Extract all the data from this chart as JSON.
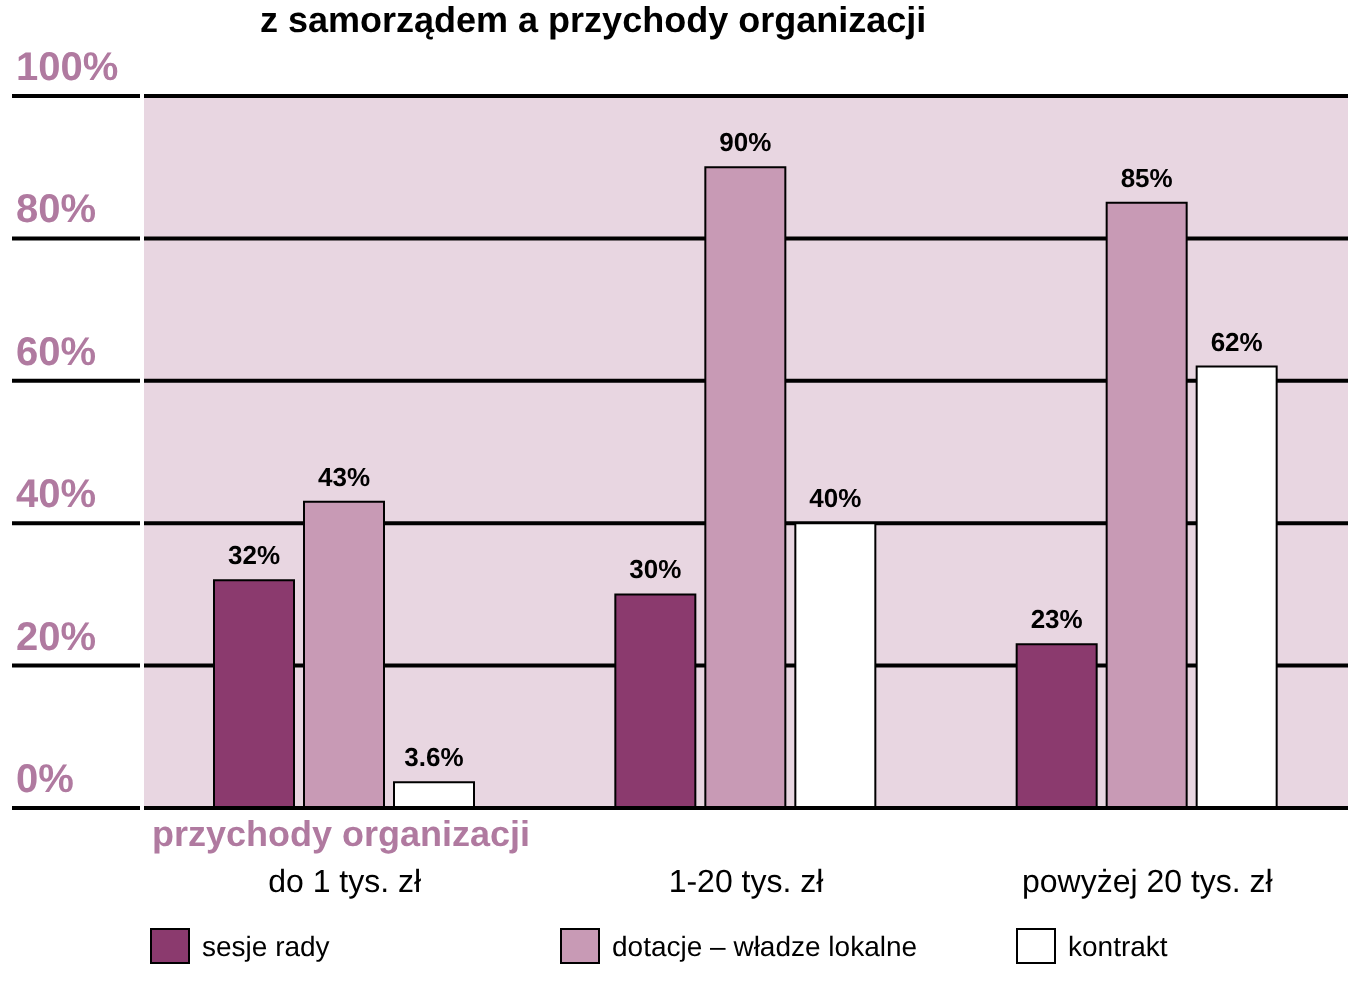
{
  "chart_data": {
    "type": "bar",
    "title": "z samorządem a przychody organizacji",
    "xlabel": "przychody organizacji",
    "categories": [
      "do 1 tys. zł",
      "1-20 tys. zł",
      "powyżej 20 tys. zł"
    ],
    "series": [
      {
        "name": "sesje rady",
        "color": "#8b3a6e",
        "values": [
          32,
          30,
          23
        ],
        "value_labels": [
          "32%",
          "30%",
          "23%"
        ]
      },
      {
        "name": "dotacje – władze lokalne",
        "color": "#c89ab5",
        "values": [
          43,
          90,
          85
        ],
        "value_labels": [
          "43%",
          "90%",
          "85%"
        ]
      },
      {
        "name": "kontrakt",
        "color": "#ffffff",
        "values": [
          3.6,
          40,
          62
        ],
        "value_labels": [
          "3.6%",
          "40%",
          "62%"
        ]
      }
    ],
    "ylim": [
      0,
      100
    ],
    "yticks": [
      {
        "value": 0,
        "label": "0%"
      },
      {
        "value": 20,
        "label": "20%"
      },
      {
        "value": 40,
        "label": "40%"
      },
      {
        "value": 60,
        "label": "60%"
      },
      {
        "value": 80,
        "label": "80%"
      },
      {
        "value": 100,
        "label": "100%"
      }
    ],
    "grid": "y",
    "legend": "bottom"
  }
}
